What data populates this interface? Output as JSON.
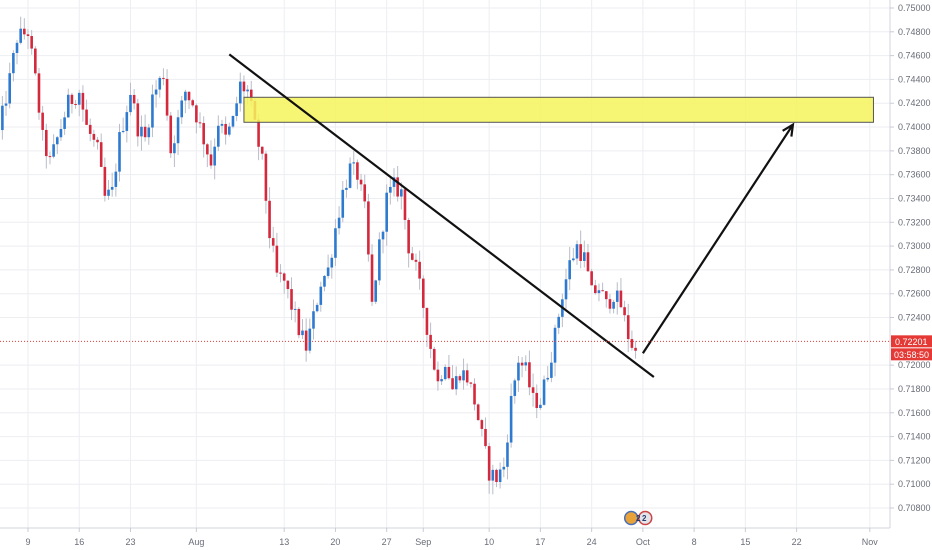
{
  "chart_data": {
    "type": "candlestick",
    "symbol_scale": {
      "ylim": [
        0.7068,
        0.7502
      ]
    },
    "x_ticks": [
      {
        "label": "9",
        "day": 9
      },
      {
        "label": "16",
        "day": 16
      },
      {
        "label": "23",
        "day": 23
      },
      {
        "label": "Aug",
        "day": 32
      },
      {
        "label": "13",
        "day": 44
      },
      {
        "label": "20",
        "day": 51
      },
      {
        "label": "27",
        "day": 58
      },
      {
        "label": "Sep",
        "day": 63
      },
      {
        "label": "10",
        "day": 72
      },
      {
        "label": "17",
        "day": 79
      },
      {
        "label": "24",
        "day": 86
      },
      {
        "label": "Oct",
        "day": 93
      },
      {
        "label": "8",
        "day": 100
      },
      {
        "label": "15",
        "day": 107
      },
      {
        "label": "22",
        "day": 114
      },
      {
        "label": "Nov",
        "day": 124
      }
    ],
    "y_ticks": [
      "0.75000",
      "0.74800",
      "0.74600",
      "0.74400",
      "0.74200",
      "0.74000",
      "0.73800",
      "0.73600",
      "0.73400",
      "0.73200",
      "0.73000",
      "0.72800",
      "0.72600",
      "0.72400",
      "0.72000",
      "0.71800",
      "0.71600",
      "0.71400",
      "0.71200",
      "0.71000",
      "0.70800"
    ],
    "price_anchors": [
      {
        "day": 5.0,
        "price": 0.7395
      },
      {
        "day": 6.5,
        "price": 0.744
      },
      {
        "day": 7.5,
        "price": 0.7475
      },
      {
        "day": 9.0,
        "price": 0.748
      },
      {
        "day": 10.0,
        "price": 0.744
      },
      {
        "day": 11.0,
        "price": 0.739
      },
      {
        "day": 12.0,
        "price": 0.737
      },
      {
        "day": 13.5,
        "price": 0.74
      },
      {
        "day": 14.5,
        "price": 0.742
      },
      {
        "day": 16.0,
        "price": 0.743
      },
      {
        "day": 17.0,
        "price": 0.74
      },
      {
        "day": 18.5,
        "price": 0.738
      },
      {
        "day": 19.5,
        "price": 0.734
      },
      {
        "day": 20.5,
        "price": 0.7345
      },
      {
        "day": 21.5,
        "price": 0.739
      },
      {
        "day": 23.0,
        "price": 0.743
      },
      {
        "day": 24.0,
        "price": 0.74
      },
      {
        "day": 25.0,
        "price": 0.739
      },
      {
        "day": 26.0,
        "price": 0.7425
      },
      {
        "day": 27.5,
        "price": 0.7445
      },
      {
        "day": 28.5,
        "price": 0.738
      },
      {
        "day": 29.5,
        "price": 0.7405
      },
      {
        "day": 30.5,
        "price": 0.743
      },
      {
        "day": 31.5,
        "price": 0.742
      },
      {
        "day": 33.0,
        "price": 0.739
      },
      {
        "day": 34.0,
        "price": 0.737
      },
      {
        "day": 35.0,
        "price": 0.7405
      },
      {
        "day": 36.0,
        "price": 0.739
      },
      {
        "day": 37.0,
        "price": 0.7405
      },
      {
        "day": 38.0,
        "price": 0.7435
      },
      {
        "day": 39.0,
        "price": 0.743
      },
      {
        "day": 40.0,
        "price": 0.74
      },
      {
        "day": 41.0,
        "price": 0.737
      },
      {
        "day": 42.0,
        "price": 0.731
      },
      {
        "day": 43.0,
        "price": 0.7275
      },
      {
        "day": 44.0,
        "price": 0.727
      },
      {
        "day": 45.0,
        "price": 0.725
      },
      {
        "day": 46.0,
        "price": 0.723
      },
      {
        "day": 47.0,
        "price": 0.7215
      },
      {
        "day": 48.0,
        "price": 0.724
      },
      {
        "day": 49.0,
        "price": 0.727
      },
      {
        "day": 50.0,
        "price": 0.728
      },
      {
        "day": 51.0,
        "price": 0.7315
      },
      {
        "day": 52.0,
        "price": 0.7345
      },
      {
        "day": 53.0,
        "price": 0.7365
      },
      {
        "day": 54.0,
        "price": 0.736
      },
      {
        "day": 55.0,
        "price": 0.733
      },
      {
        "day": 56.0,
        "price": 0.725
      },
      {
        "day": 57.0,
        "price": 0.73
      },
      {
        "day": 58.0,
        "price": 0.734
      },
      {
        "day": 59.0,
        "price": 0.735
      },
      {
        "day": 60.0,
        "price": 0.7345
      },
      {
        "day": 61.0,
        "price": 0.73
      },
      {
        "day": 62.0,
        "price": 0.728
      },
      {
        "day": 63.0,
        "price": 0.725
      },
      {
        "day": 64.0,
        "price": 0.7215
      },
      {
        "day": 65.0,
        "price": 0.7185
      },
      {
        "day": 66.0,
        "price": 0.7205
      },
      {
        "day": 67.0,
        "price": 0.718
      },
      {
        "day": 68.0,
        "price": 0.7195
      },
      {
        "day": 69.0,
        "price": 0.719
      },
      {
        "day": 70.0,
        "price": 0.717
      },
      {
        "day": 71.0,
        "price": 0.714
      },
      {
        "day": 72.0,
        "price": 0.711
      },
      {
        "day": 73.0,
        "price": 0.7105
      },
      {
        "day": 74.0,
        "price": 0.7115
      },
      {
        "day": 75.0,
        "price": 0.717
      },
      {
        "day": 76.0,
        "price": 0.7205
      },
      {
        "day": 77.0,
        "price": 0.7195
      },
      {
        "day": 78.0,
        "price": 0.717
      },
      {
        "day": 79.0,
        "price": 0.717
      },
      {
        "day": 80.0,
        "price": 0.7195
      },
      {
        "day": 81.0,
        "price": 0.7225
      },
      {
        "day": 82.0,
        "price": 0.726
      },
      {
        "day": 83.0,
        "price": 0.7285
      },
      {
        "day": 84.0,
        "price": 0.73
      },
      {
        "day": 85.0,
        "price": 0.729
      },
      {
        "day": 86.0,
        "price": 0.726
      },
      {
        "day": 87.0,
        "price": 0.7265
      },
      {
        "day": 88.0,
        "price": 0.725
      },
      {
        "day": 89.0,
        "price": 0.726
      },
      {
        "day": 90.0,
        "price": 0.725
      },
      {
        "day": 91.0,
        "price": 0.7225
      },
      {
        "day": 92.0,
        "price": 0.721
      }
    ],
    "current_price": {
      "value": 0.722,
      "label": "0.72201",
      "countdown": "03:58:50"
    },
    "annotations": {
      "resistance_zone": {
        "y_low": 0.7404,
        "y_high": 0.7425,
        "x_start": 38.5,
        "x_end": 124.5
      },
      "trendline": {
        "from": {
          "day": 36.5,
          "price": 0.7461
        },
        "to": {
          "day": 94.5,
          "price": 0.719
        }
      },
      "forecast_arrow": {
        "from": {
          "day": 93.0,
          "price": 0.721
        },
        "to": {
          "day": 113.5,
          "price": 0.7402
        }
      }
    },
    "event_badges": [
      "2",
      "2"
    ]
  },
  "colors": {
    "bull": "#2e7ad0",
    "bear": "#d4283c",
    "wick": "#b9bdc9",
    "zone_fill": "#f6f55c",
    "zone_stroke": "#555555",
    "drawing": "#111111",
    "price_line": "#e53935",
    "price_tag": "#e53935",
    "countdown_tag": "#e53935",
    "axis_text": "#6a6d78",
    "grid": "#edeef2"
  },
  "axis_labels": {
    "price_tag": "0.72201",
    "countdown": "03:58:50"
  }
}
